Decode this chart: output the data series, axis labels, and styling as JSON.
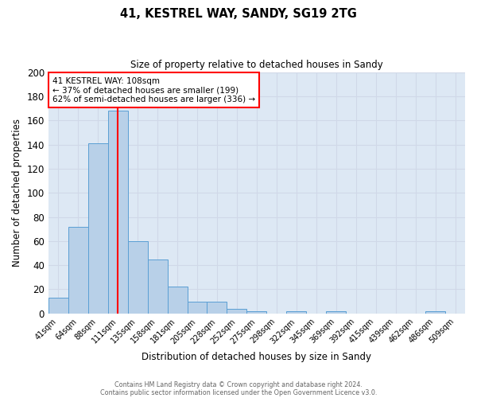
{
  "title1": "41, KESTREL WAY, SANDY, SG19 2TG",
  "title2": "Size of property relative to detached houses in Sandy",
  "xlabel": "Distribution of detached houses by size in Sandy",
  "ylabel": "Number of detached properties",
  "footnote1": "Contains HM Land Registry data © Crown copyright and database right 2024.",
  "footnote2": "Contains public sector information licensed under the Open Government Licence v3.0.",
  "bin_labels": [
    "41sqm",
    "64sqm",
    "88sqm",
    "111sqm",
    "135sqm",
    "158sqm",
    "181sqm",
    "205sqm",
    "228sqm",
    "252sqm",
    "275sqm",
    "298sqm",
    "322sqm",
    "345sqm",
    "369sqm",
    "392sqm",
    "415sqm",
    "439sqm",
    "462sqm",
    "486sqm",
    "509sqm"
  ],
  "bin_values": [
    13,
    72,
    141,
    168,
    60,
    45,
    22,
    10,
    10,
    4,
    2,
    0,
    2,
    0,
    2,
    0,
    0,
    0,
    0,
    2,
    0
  ],
  "bar_color": "#b8d0e8",
  "bar_edge_color": "#5a9fd4",
  "grid_color": "#d0d8e8",
  "bg_color": "#dde8f4",
  "annotation_text": "41 KESTREL WAY: 108sqm\n← 37% of detached houses are smaller (199)\n62% of semi-detached houses are larger (336) →",
  "annotation_box_color": "white",
  "annotation_box_edge": "red",
  "ylim": [
    0,
    200
  ],
  "yticks": [
    0,
    20,
    40,
    60,
    80,
    100,
    120,
    140,
    160,
    180,
    200
  ],
  "red_line_index": 3.0
}
